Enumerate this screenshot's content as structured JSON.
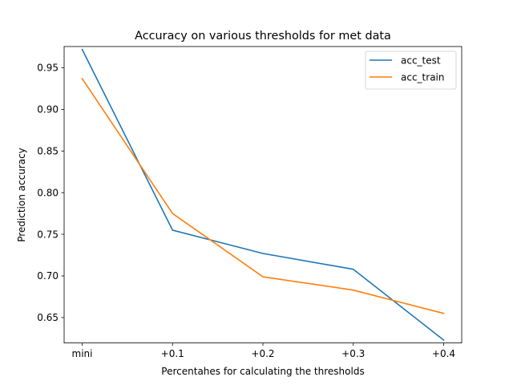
{
  "chart_data": {
    "type": "line",
    "title": "Accuracy on various thresholds for met data",
    "xlabel": "Percentahes for calculating the thresholds",
    "ylabel": "Prediction accuracy",
    "categories": [
      "mini",
      "+0.1",
      "+0.2",
      "+0.3",
      "+0.4"
    ],
    "ylim": [
      0.6195,
      0.9755
    ],
    "yticks": [
      0.65,
      0.7,
      0.75,
      0.8,
      0.85,
      0.9,
      0.95
    ],
    "grid": false,
    "legend_position": "top-right",
    "series": [
      {
        "name": "acc_test",
        "color": "#1f77b4",
        "values": [
          0.972,
          0.755,
          0.727,
          0.708,
          0.623
        ]
      },
      {
        "name": "acc_train",
        "color": "#ff7f0e",
        "values": [
          0.937,
          0.775,
          0.699,
          0.683,
          0.655
        ]
      }
    ]
  }
}
